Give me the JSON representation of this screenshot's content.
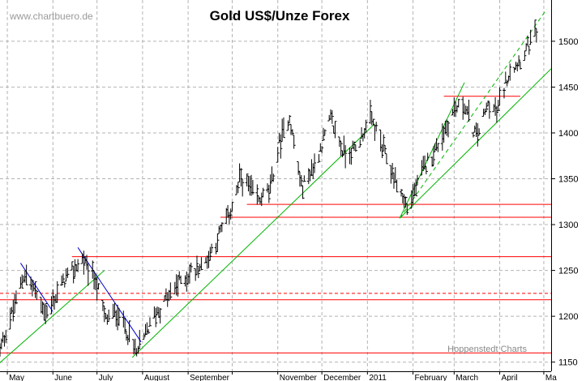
{
  "header": {
    "watermark": "www.chartbuero.de",
    "credit": "Hoppenstedt Charts"
  },
  "colors": {
    "bars": "#000000",
    "grid": "#b4b4b4",
    "support_resistance": "#ff0000",
    "uptrend": "#00b400",
    "downtrend": "#0000cc"
  },
  "chart_data": {
    "type": "ohlc",
    "title": "Gold US$/Unze Forex",
    "xlabel": "",
    "ylabel": "",
    "ylim": [
      1140,
      1545
    ],
    "y_ticks": [
      1150,
      1200,
      1250,
      1300,
      1350,
      1400,
      1450,
      1500
    ],
    "x_range": [
      "2010-04-26",
      "2011-04-29"
    ],
    "x_ticks": [
      {
        "date": "2010-05-01",
        "label": "May"
      },
      {
        "date": "2010-06-01",
        "label": "June"
      },
      {
        "date": "2010-07-01",
        "label": "July"
      },
      {
        "date": "2010-08-01",
        "label": "August"
      },
      {
        "date": "2010-09-01",
        "label": "September"
      },
      {
        "date": "2010-10-01",
        "label": ""
      },
      {
        "date": "2010-11-01",
        "label": "November"
      },
      {
        "date": "2010-12-01",
        "label": "December"
      },
      {
        "date": "2011-01-01",
        "label": "2011"
      },
      {
        "date": "2011-02-01",
        "label": "February"
      },
      {
        "date": "2011-03-01",
        "label": "March"
      },
      {
        "date": "2011-04-01",
        "label": "April"
      },
      {
        "date": "2011-05-01",
        "label": "Ma"
      }
    ],
    "grid": true,
    "path": [
      [
        "2010-04-26",
        1162
      ],
      [
        "2010-05-13",
        1248
      ],
      [
        "2010-05-28",
        1202
      ],
      [
        "2010-06-08",
        1238
      ],
      [
        "2010-06-21",
        1262
      ],
      [
        "2010-06-30",
        1240
      ],
      [
        "2010-07-07",
        1196
      ],
      [
        "2010-07-15",
        1205
      ],
      [
        "2010-07-28",
        1160
      ],
      [
        "2010-08-09",
        1200
      ],
      [
        "2010-08-26",
        1238
      ],
      [
        "2010-09-13",
        1260
      ],
      [
        "2010-09-29",
        1310
      ],
      [
        "2010-10-07",
        1352
      ],
      [
        "2010-10-19",
        1325
      ],
      [
        "2010-10-27",
        1340
      ],
      [
        "2010-11-02",
        1388
      ],
      [
        "2010-11-09",
        1418
      ],
      [
        "2010-11-17",
        1340
      ],
      [
        "2010-11-26",
        1365
      ],
      [
        "2010-12-07",
        1415
      ],
      [
        "2010-12-16",
        1378
      ],
      [
        "2010-12-24",
        1382
      ],
      [
        "2011-01-03",
        1418
      ],
      [
        "2011-01-12",
        1380
      ],
      [
        "2011-01-25",
        1330
      ],
      [
        "2011-01-28",
        1318
      ],
      [
        "2011-02-08",
        1360
      ],
      [
        "2011-02-17",
        1385
      ],
      [
        "2011-03-01",
        1425
      ],
      [
        "2011-03-08",
        1430
      ],
      [
        "2011-03-16",
        1395
      ],
      [
        "2011-03-24",
        1430
      ],
      [
        "2011-03-30",
        1422
      ],
      [
        "2011-04-07",
        1465
      ],
      [
        "2011-04-15",
        1480
      ],
      [
        "2011-04-26",
        1508
      ]
    ],
    "horizontal_lines": [
      {
        "y": 1160,
        "style": "solid",
        "color": "red",
        "from": "2010-04-26",
        "to": "2011-05-06"
      },
      {
        "y": 1218,
        "style": "solid",
        "color": "red",
        "from": "2010-04-26",
        "to": "2011-05-06"
      },
      {
        "y": 1225,
        "style": "dashed",
        "color": "red",
        "from": "2010-04-26",
        "to": "2011-05-06"
      },
      {
        "y": 1265,
        "style": "solid",
        "color": "red",
        "from": "2010-06-14",
        "to": "2011-05-06"
      },
      {
        "y": 1308,
        "style": "solid",
        "color": "red",
        "from": "2010-09-23",
        "to": "2011-05-06"
      },
      {
        "y": 1322,
        "style": "solid",
        "color": "red",
        "from": "2010-10-11",
        "to": "2011-05-06"
      },
      {
        "y": 1440,
        "style": "solid",
        "color": "red",
        "from": "2011-02-22",
        "to": "2011-04-15"
      }
    ],
    "trend_lines": [
      {
        "color": "green",
        "style": "solid",
        "points": [
          [
            "2010-04-25",
            1148
          ],
          [
            "2010-07-06",
            1250
          ]
        ]
      },
      {
        "color": "green",
        "style": "solid",
        "points": [
          [
            "2010-07-25",
            1155
          ],
          [
            "2011-01-06",
            1410
          ]
        ]
      },
      {
        "color": "green",
        "style": "solid",
        "points": [
          [
            "2011-01-23",
            1307
          ],
          [
            "2011-03-08",
            1455
          ]
        ]
      },
      {
        "color": "green",
        "style": "dashed",
        "points": [
          [
            "2011-01-23",
            1307
          ],
          [
            "2011-05-03",
            1535
          ]
        ]
      },
      {
        "color": "green",
        "style": "solid",
        "points": [
          [
            "2011-01-23",
            1307
          ],
          [
            "2011-05-06",
            1470
          ]
        ]
      },
      {
        "color": "blue",
        "style": "solid",
        "points": [
          [
            "2010-05-10",
            1258
          ],
          [
            "2010-06-01",
            1205
          ]
        ]
      },
      {
        "color": "blue",
        "style": "solid",
        "points": [
          [
            "2010-06-18",
            1275
          ],
          [
            "2010-07-31",
            1172
          ]
        ]
      }
    ]
  }
}
